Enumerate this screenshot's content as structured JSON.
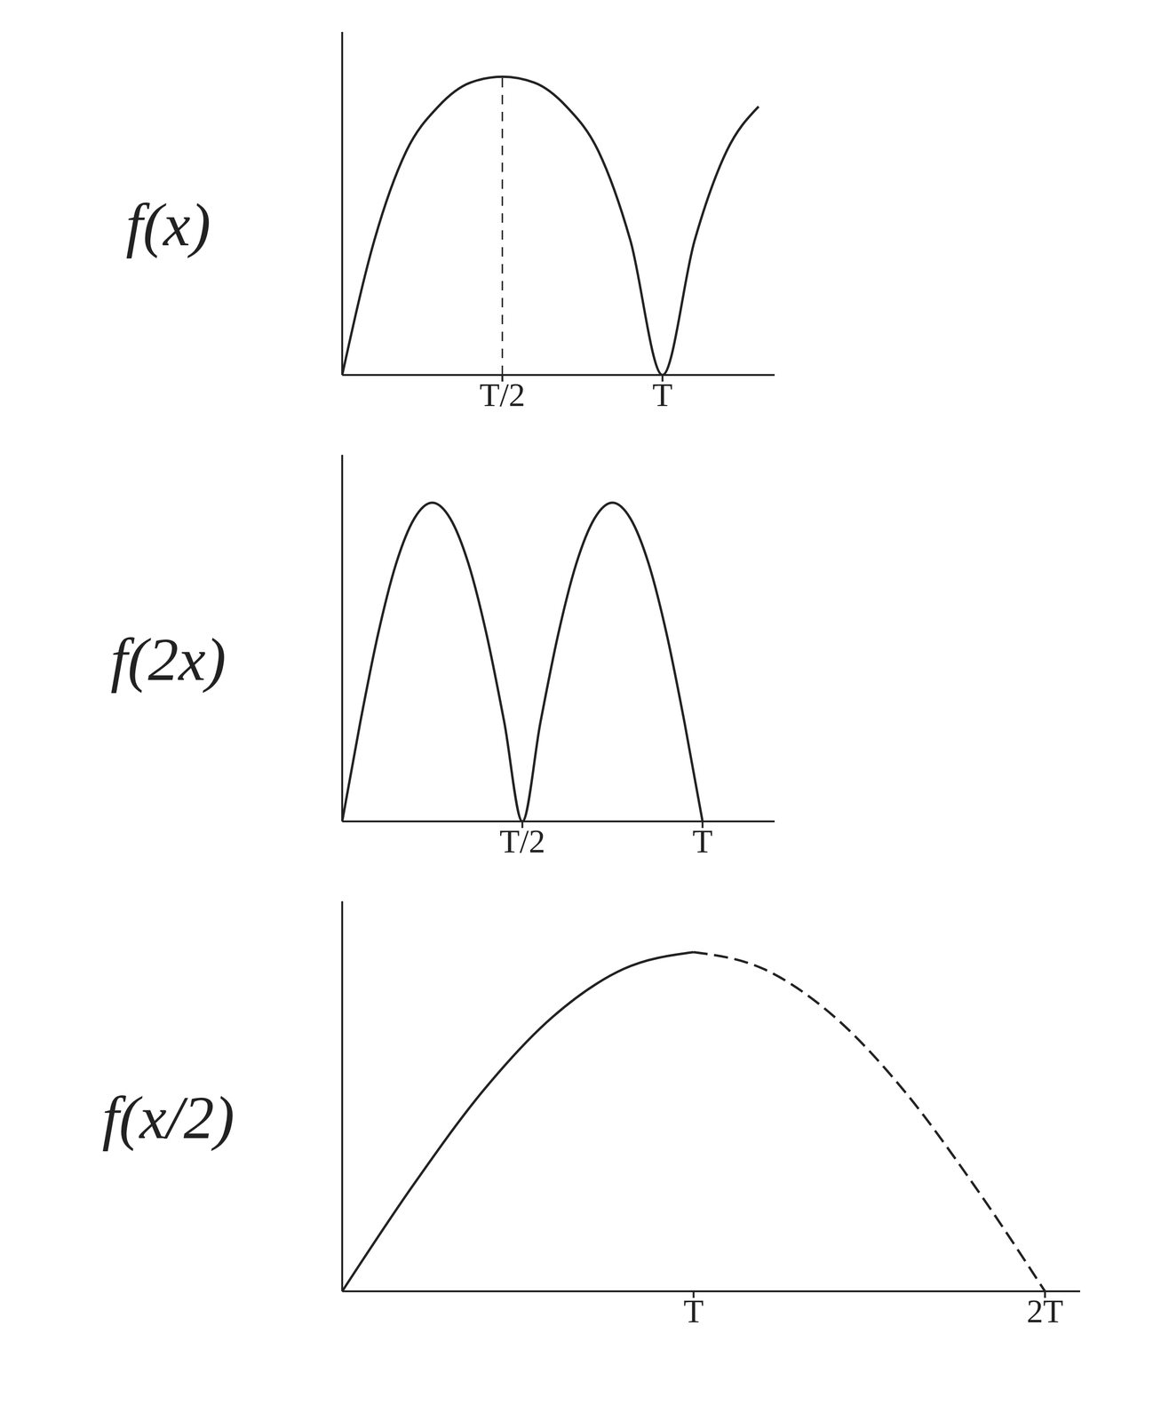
{
  "chart_data": [
    {
      "type": "line",
      "title": "f(x)",
      "x": [
        0,
        0.1,
        0.2,
        0.3,
        0.4,
        0.5,
        0.6,
        0.7,
        0.8,
        0.9,
        1.0,
        1.1,
        1.2,
        1.3
      ],
      "values": [
        0,
        0.45,
        0.75,
        0.9,
        0.98,
        1,
        0.98,
        0.9,
        0.75,
        0.45,
        0,
        0.45,
        0.75,
        0.9
      ],
      "color": "#222222",
      "xlim": [
        0,
        1.35
      ],
      "xticks": [
        {
          "value": 0.5,
          "label": "T/2"
        },
        {
          "value": 1,
          "label": "T"
        }
      ],
      "ylim": [
        0,
        1.15
      ],
      "yticks": [],
      "tick_labels": "x",
      "vline": 0.5
    },
    {
      "type": "line",
      "title": "f(2x)",
      "x": [
        0,
        0.05,
        0.1,
        0.15,
        0.2,
        0.25,
        0.3,
        0.35,
        0.4,
        0.45,
        0.5,
        0.55,
        0.6,
        0.65,
        0.7,
        0.75,
        0.8,
        0.85,
        0.9,
        0.95,
        1.0
      ],
      "values": [
        0,
        0.31,
        0.59,
        0.81,
        0.95,
        1,
        0.95,
        0.81,
        0.59,
        0.31,
        0,
        0.31,
        0.59,
        0.81,
        0.95,
        1,
        0.95,
        0.81,
        0.59,
        0.31,
        0
      ],
      "color": "#222222",
      "xlim": [
        0,
        1.2
      ],
      "xticks": [
        {
          "value": 0.5,
          "label": "T/2"
        },
        {
          "value": 1,
          "label": "T"
        }
      ],
      "ylim": [
        0,
        1.15
      ],
      "yticks": [],
      "tick_labels": "x"
    },
    {
      "type": "line",
      "title": "f(x/2)",
      "x": [
        0,
        0.2,
        0.4,
        0.6,
        0.8,
        1.0,
        1.2,
        1.4,
        1.6,
        1.8,
        2.0
      ],
      "series": [
        {
          "line_style": "solid",
          "values": [
            0,
            0.31,
            0.59,
            0.81,
            0.95,
            1,
            null,
            null,
            null,
            null,
            null
          ]
        },
        {
          "line_style": "dashed",
          "values": [
            null,
            null,
            null,
            null,
            null,
            1,
            0.95,
            0.81,
            0.59,
            0.31,
            0
          ]
        }
      ],
      "color": "#222222",
      "xlim": [
        0,
        2.1
      ],
      "xticks": [
        {
          "value": 1,
          "label": "T"
        },
        {
          "value": 2,
          "label": "2T"
        }
      ],
      "ylim": [
        0,
        1.15
      ],
      "yticks": [],
      "tick_labels": "x"
    }
  ]
}
